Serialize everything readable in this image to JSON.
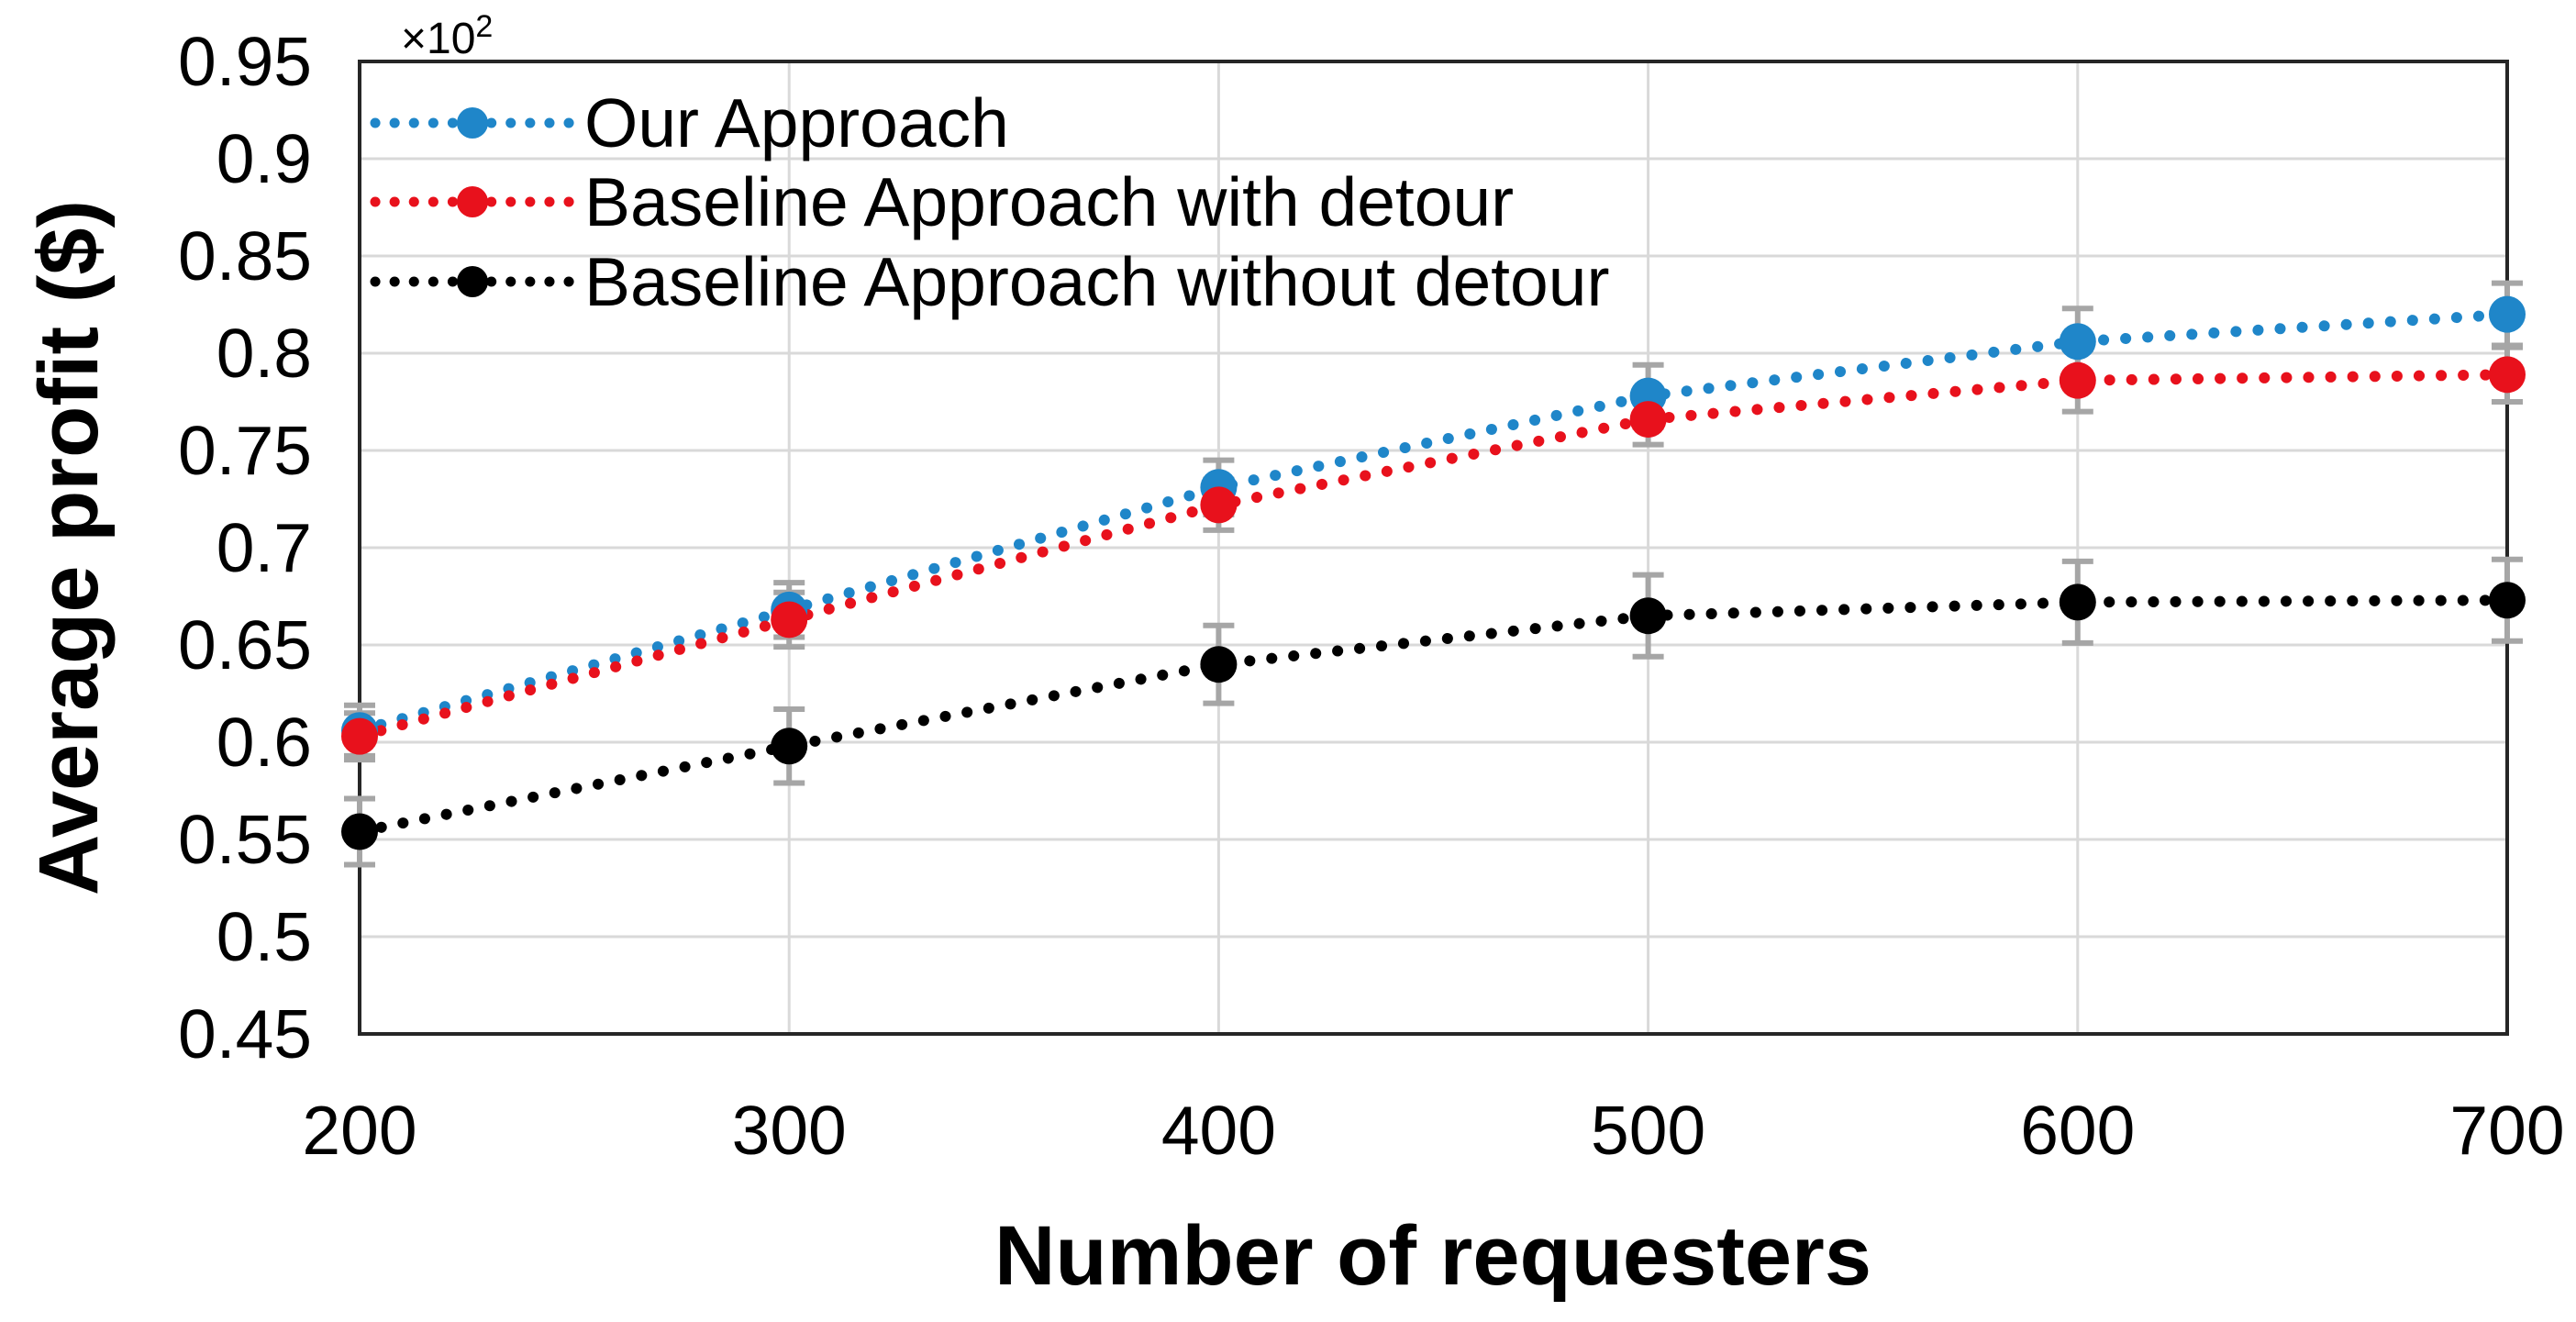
{
  "chart_data": {
    "type": "line",
    "title": "",
    "xlabel": "Number of requesters",
    "ylabel": "Average profit ($)",
    "y_multiplier": {
      "base": "×10",
      "exponent": "2"
    },
    "x": [
      200,
      300,
      400,
      500,
      600,
      700
    ],
    "xlim": [
      200,
      700
    ],
    "ylim": [
      0.45,
      0.95
    ],
    "xticks": [
      "200",
      "300",
      "400",
      "500",
      "600",
      "700"
    ],
    "yticks": [
      "0.45",
      "0.5",
      "0.55",
      "0.6",
      "0.65",
      "0.7",
      "0.75",
      "0.8",
      "0.85",
      "0.9",
      "0.95"
    ],
    "grid": true,
    "legend_position": "top-left-inside",
    "line_style": "dotted",
    "marker": "circle",
    "series": [
      {
        "name": "Our Approach",
        "color": "#1f86c9",
        "values": [
          0.606,
          0.668,
          0.731,
          0.778,
          0.806,
          0.82
        ],
        "errors": [
          0.013,
          0.014,
          0.014,
          0.016,
          0.017,
          0.016
        ]
      },
      {
        "name": "Baseline Approach with detour",
        "color": "#e8111c",
        "values": [
          0.603,
          0.663,
          0.722,
          0.766,
          0.786,
          0.789
        ],
        "errors": [
          0.012,
          0.014,
          0.013,
          0.013,
          0.016,
          0.014
        ]
      },
      {
        "name": "Baseline Approach without detour",
        "color": "#000000",
        "values": [
          0.554,
          0.598,
          0.64,
          0.665,
          0.672,
          0.673
        ],
        "errors": [
          0.017,
          0.019,
          0.02,
          0.021,
          0.021,
          0.021
        ]
      }
    ],
    "style_colors": {
      "grid": "#d9d9d9",
      "plot_border": "#262626",
      "error_bar": "#a6a6a6",
      "background": "#ffffff",
      "text": "#000000"
    }
  }
}
